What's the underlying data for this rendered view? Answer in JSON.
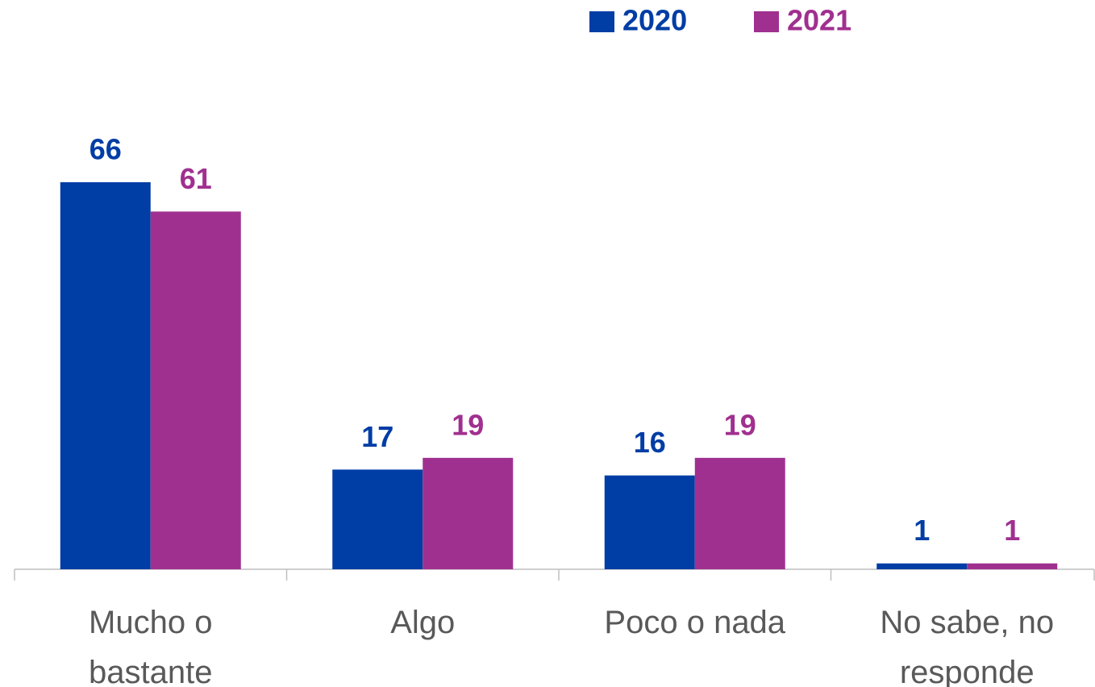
{
  "chart_data": {
    "type": "bar",
    "categories": [
      "Mucho o bastante",
      "Algo",
      "Poco o nada",
      "No sabe, no responde"
    ],
    "series": [
      {
        "name": "2020",
        "color": "#003da5",
        "values": [
          66,
          17,
          16,
          1
        ]
      },
      {
        "name": "2021",
        "color": "#a0308f",
        "values": [
          61,
          19,
          19,
          1
        ]
      }
    ],
    "ylim": [
      0,
      70
    ],
    "legend": "top"
  }
}
